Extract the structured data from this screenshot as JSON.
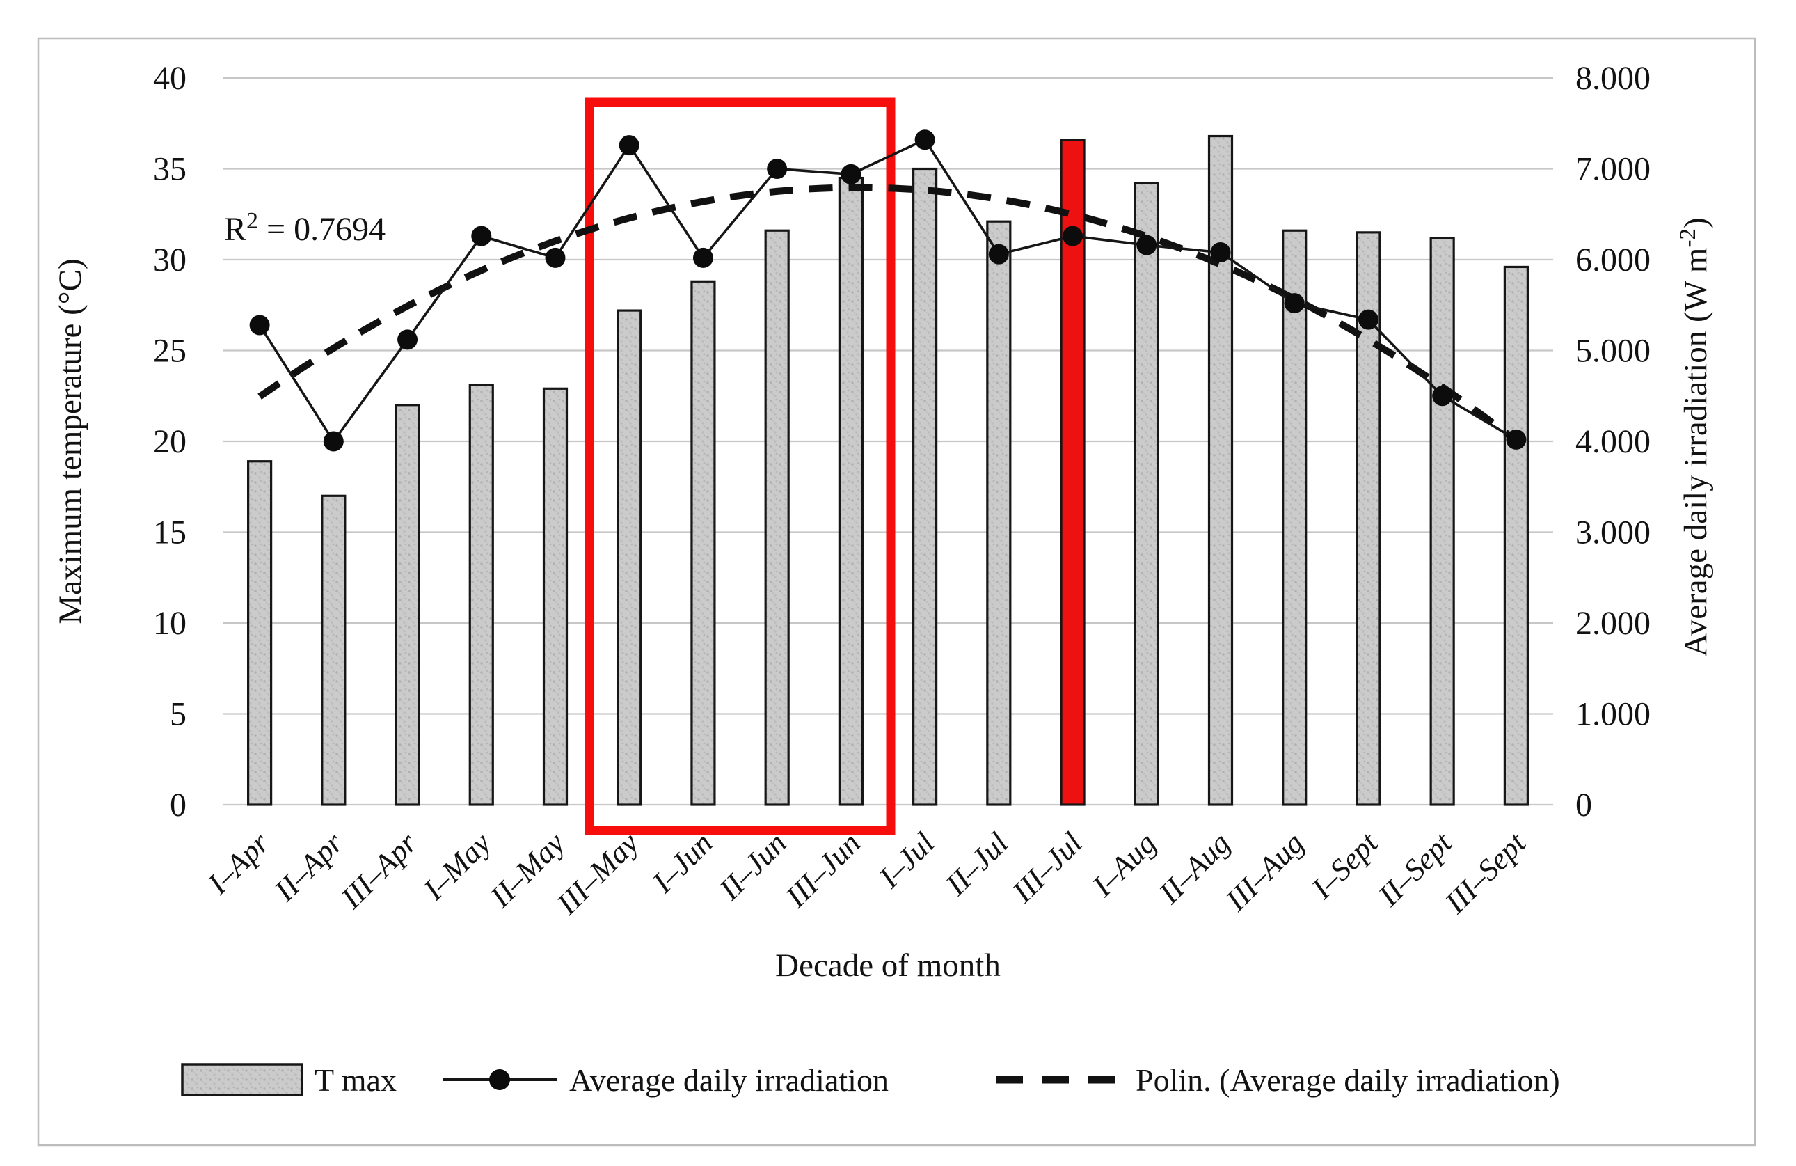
{
  "figure": {
    "background": "#ffffff",
    "border_color": "#bdbdbd"
  },
  "chart_data": {
    "type": "bar+line",
    "title": "",
    "categories": [
      "I-Apr",
      "II-Apr",
      "III-Apr",
      "I-May",
      "II-May",
      "III-May",
      "I-Jun",
      "II-Jun",
      "III-Jun",
      "I-Jul",
      "II-Jul",
      "III-Jul",
      "I-Aug",
      "II-Aug",
      "III-Aug",
      "I-Sept",
      "II-Sept",
      "III-Sept"
    ],
    "category_display": [
      "I–Apr",
      "II–Apr",
      "III–Apr",
      "I–May",
      "II–May",
      "III–May",
      "I–Jun",
      "II–Jun",
      "III–Jun",
      "I–Jul",
      "II–Jul",
      "III–Jul",
      "I–Aug",
      "II–Aug",
      "III–Aug",
      "I–Sept",
      "II–Sept",
      "III–Sept"
    ],
    "series": [
      {
        "name": "T max",
        "type": "bar",
        "axis": "left",
        "unit": "°C",
        "values": [
          18.9,
          17.0,
          22.0,
          23.1,
          22.9,
          27.2,
          28.8,
          31.6,
          34.5,
          35.0,
          32.1,
          36.6,
          34.2,
          36.8,
          31.6,
          31.5,
          31.2,
          29.6
        ]
      },
      {
        "name": "Average daily irradiation",
        "type": "line",
        "axis": "right",
        "unit": "W m-2",
        "values": [
          5280,
          4000,
          5120,
          6260,
          6020,
          7260,
          6020,
          7000,
          6940,
          7320,
          6060,
          6260,
          6160,
          6080,
          5520,
          5340,
          4500,
          4020
        ]
      },
      {
        "name": "Polin. (Average daily irradiation)",
        "type": "trend",
        "fit": "polynomial",
        "degree": 2,
        "source": "Average daily irradiation"
      }
    ],
    "highlight": {
      "red_bar_category": "III-Jul",
      "red_box_from": "III-May",
      "red_box_to": "III-Jun"
    },
    "axes": {
      "left": {
        "title": "Maximum temperature (°C)",
        "min": 0,
        "max": 40,
        "step": 5,
        "ticks": [
          "0",
          "5",
          "10",
          "15",
          "20",
          "25",
          "30",
          "35",
          "40"
        ]
      },
      "right": {
        "title_main": "Average daily irradiation (W m",
        "title_sup": "-2",
        "title_close": ")",
        "min": 0,
        "max": 8000,
        "step": 1000,
        "ticks": [
          "0",
          "1.000",
          "2.000",
          "3.000",
          "4.000",
          "5.000",
          "6.000",
          "7.000",
          "8.000"
        ]
      },
      "x": {
        "title": "Decade of month"
      }
    },
    "annotation": {
      "r2_base": "R",
      "r2_sup": "2",
      "r2_rest": " = 0.7694"
    },
    "grid": true,
    "legend_position": "bottom",
    "colors": {
      "bar_fill": "#cbcbcb",
      "bar_speckle": "#b0b0b0",
      "bar_stroke": "#161616",
      "line": "#161616",
      "marker": "#0c0c0c",
      "trend": "#111111",
      "highlight_bar_fill": "#ee1111",
      "highlight_box_stroke": "#f80d0d",
      "grid": "#c7c7c7",
      "text": "#121212"
    }
  }
}
